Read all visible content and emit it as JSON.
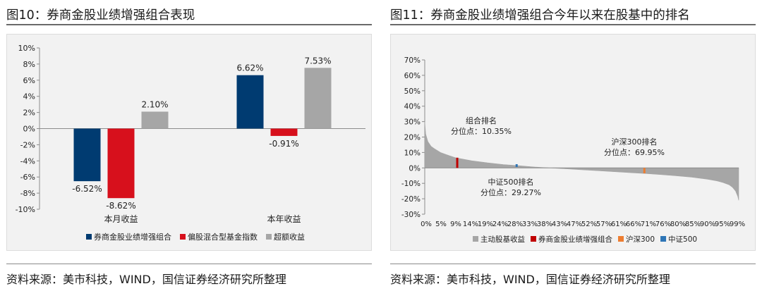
{
  "figure_left": {
    "title": "图10：券商金股业绩增强组合表现",
    "source": "资料来源：美市科技，WIND，国信证券经济研究所整理"
  },
  "figure_right": {
    "title": "图11：券商金股业绩增强组合今年以来在股基中的排名",
    "source": "资料来源：美市科技，WIND，国信证券经济研究所整理"
  },
  "chart_data": [
    {
      "type": "bar",
      "title": "",
      "xlabel": "",
      "ylabel": "",
      "categories": [
        "本月收益",
        "本年收益"
      ],
      "series": [
        {
          "name": "券商金股业绩增强组合",
          "color": "#003b71",
          "values": [
            -6.52,
            6.62
          ],
          "labels": [
            "-6.52%",
            "6.62%"
          ]
        },
        {
          "name": "偏股混合型基金指数",
          "color": "#d7101c",
          "values": [
            -8.62,
            -0.91
          ],
          "labels": [
            "-8.62%",
            "-0.91%"
          ]
        },
        {
          "name": "超额收益",
          "color": "#a6a6a6",
          "values": [
            2.1,
            7.53
          ],
          "labels": [
            "2.10%",
            "7.53%"
          ]
        }
      ],
      "ylim": [
        -10,
        10
      ],
      "yticks": [
        -10,
        -8,
        -6,
        -4,
        -2,
        0,
        2,
        4,
        6,
        8,
        10
      ],
      "ytick_labels": [
        "-10%",
        "-8%",
        "-6%",
        "-4%",
        "-2%",
        "0%",
        "2%",
        "4%",
        "6%",
        "8%",
        "10%"
      ],
      "legend_position": "bottom",
      "grid": false
    },
    {
      "type": "area",
      "title": "",
      "xlabel": "",
      "ylabel": "",
      "ylim": [
        -30,
        70
      ],
      "yticks": [
        -30,
        -20,
        -10,
        0,
        10,
        20,
        30,
        40,
        50,
        60,
        70
      ],
      "ytick_labels": [
        "-30%",
        "-20%",
        "-10%",
        "0%",
        "10%",
        "20%",
        "30%",
        "40%",
        "50%",
        "60%",
        "70%"
      ],
      "xlim": [
        0,
        100
      ],
      "xtick_labels": [
        "0%",
        "5%",
        "9%",
        "14%",
        "19%",
        "24%",
        "28%",
        "33%",
        "38%",
        "43%",
        "47%",
        "52%",
        "57%",
        "61%",
        "66%",
        "71%",
        "76%",
        "80%",
        "85%",
        "90%",
        "95%",
        "99%"
      ],
      "series": [
        {
          "name": "主动股基收益",
          "color": "#a6a6a6",
          "x": [
            0,
            0.3,
            1,
            2,
            3,
            5,
            7,
            10,
            15,
            20,
            25,
            30,
            35,
            40,
            45,
            50,
            55,
            60,
            65,
            70,
            75,
            80,
            85,
            90,
            93,
            95,
            97,
            98,
            99,
            99.7,
            100
          ],
          "y": [
            30,
            22,
            17,
            14,
            12.5,
            10,
            8.5,
            6.5,
            4.6,
            3.3,
            2.2,
            1.4,
            0.6,
            0,
            -0.6,
            -1.2,
            -1.8,
            -2.4,
            -3,
            -3.6,
            -4.3,
            -5.1,
            -6,
            -7.3,
            -8.4,
            -9.5,
            -11,
            -12.5,
            -15,
            -18.5,
            -21
          ]
        },
        {
          "name": "券商金股业绩增强组合",
          "color": "#c00000",
          "x": [
            10.35
          ],
          "y": [
            6.62
          ]
        },
        {
          "name": "沪深300",
          "color": "#ed7d31",
          "x": [
            69.95
          ],
          "y": [
            -3.5
          ]
        },
        {
          "name": "中证500",
          "color": "#2e75b6",
          "x": [
            29.27
          ],
          "y": [
            1.5
          ]
        }
      ],
      "annotations": [
        {
          "lines": [
            "组合排名",
            "分位点：10.35%"
          ]
        },
        {
          "lines": [
            "中证500排名",
            "分位点：29.27%"
          ]
        },
        {
          "lines": [
            "沪深300排名",
            "分位点：69.95%"
          ]
        }
      ],
      "legend_position": "bottom",
      "grid": false
    }
  ]
}
